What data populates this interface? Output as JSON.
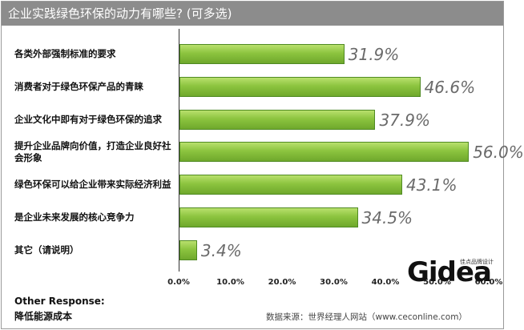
{
  "title": "企业实践绿色环保的动力有哪些? (可多选)",
  "chart_data": {
    "type": "bar",
    "orientation": "horizontal",
    "categories": [
      "各类外部强制标准的要求",
      "消费者对于绿色环保产品的青睐",
      "企业文化中即有对于绿色环保的追求",
      "提升企业品牌向价值，打造企业良好社会形象",
      "绿色环保可以给企业带来实际经济利益",
      "是企业未来发展的核心竞争力",
      "其它（请说明）"
    ],
    "values": [
      31.9,
      46.6,
      37.9,
      56.0,
      43.1,
      34.5,
      3.4
    ],
    "value_labels": [
      "31.9%",
      "46.6%",
      "37.9%",
      "56.0%",
      "43.1%",
      "34.5%",
      "3.4%"
    ],
    "xlim": [
      0,
      60
    ],
    "xticks": [
      "0.0%",
      "10.0%",
      "20.0%",
      "30.0%",
      "40.0%",
      "50.0%",
      "60.0%"
    ],
    "grid": false,
    "bar_color": "#8cc43f"
  },
  "other_response": {
    "label": "Other Response:",
    "value": "降低能源成本"
  },
  "source": "数据来源：世界经理人网站（www.ceconline.com）",
  "logo": {
    "text": "Gidea",
    "subtext": "佳点品牌设计"
  }
}
